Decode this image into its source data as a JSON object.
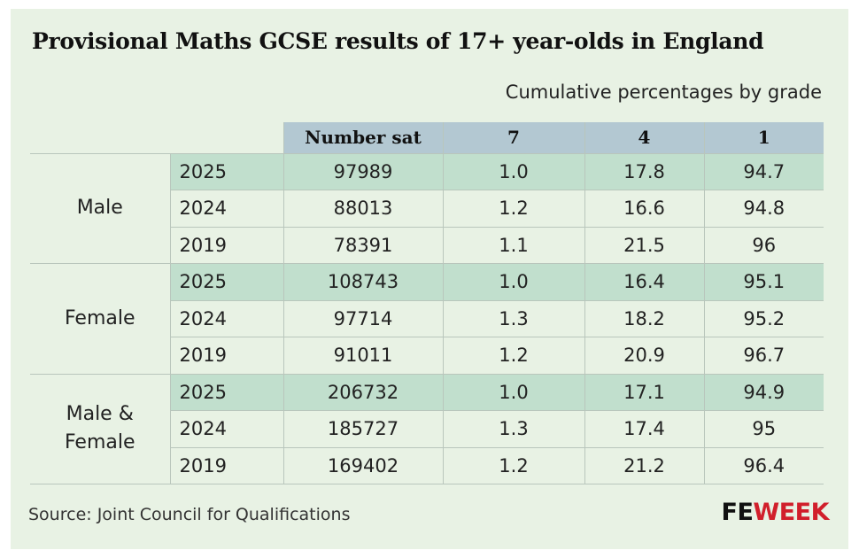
{
  "title": "Provisional Maths GCSE results of 17+ year-olds in England",
  "subtitle": "Cumulative percentages by grade",
  "source": "Source: Joint Council for Qualifications",
  "logo": {
    "part1": "FE",
    "part2": "WEEK"
  },
  "colors": {
    "background": "#e8f2e4",
    "header": "#b3c8d2",
    "highlight": "#c1dfcd",
    "logo_red": "#d11f2b"
  },
  "chart_data": {
    "type": "table",
    "columns": [
      "Number sat",
      "7",
      "4",
      "1"
    ],
    "groups": [
      {
        "name": "Male",
        "rows": [
          {
            "year": "2025",
            "values": [
              "97989",
              "1.0",
              "17.8",
              "94.7"
            ]
          },
          {
            "year": "2024",
            "values": [
              "88013",
              "1.2",
              "16.6",
              "94.8"
            ]
          },
          {
            "year": "2019",
            "values": [
              "78391",
              "1.1",
              "21.5",
              "96"
            ]
          }
        ]
      },
      {
        "name": "Female",
        "rows": [
          {
            "year": "2025",
            "values": [
              "108743",
              "1.0",
              "16.4",
              "95.1"
            ]
          },
          {
            "year": "2024",
            "values": [
              "97714",
              "1.3",
              "18.2",
              "95.2"
            ]
          },
          {
            "year": "2019",
            "values": [
              "91011",
              "1.2",
              "20.9",
              "96.7"
            ]
          }
        ]
      },
      {
        "name": "Male & Female",
        "rows": [
          {
            "year": "2025",
            "values": [
              "206732",
              "1.0",
              "17.1",
              "94.9"
            ]
          },
          {
            "year": "2024",
            "values": [
              "185727",
              "1.3",
              "17.4",
              "95"
            ]
          },
          {
            "year": "2019",
            "values": [
              "169402",
              "1.2",
              "21.2",
              "96.4"
            ]
          }
        ]
      }
    ]
  }
}
